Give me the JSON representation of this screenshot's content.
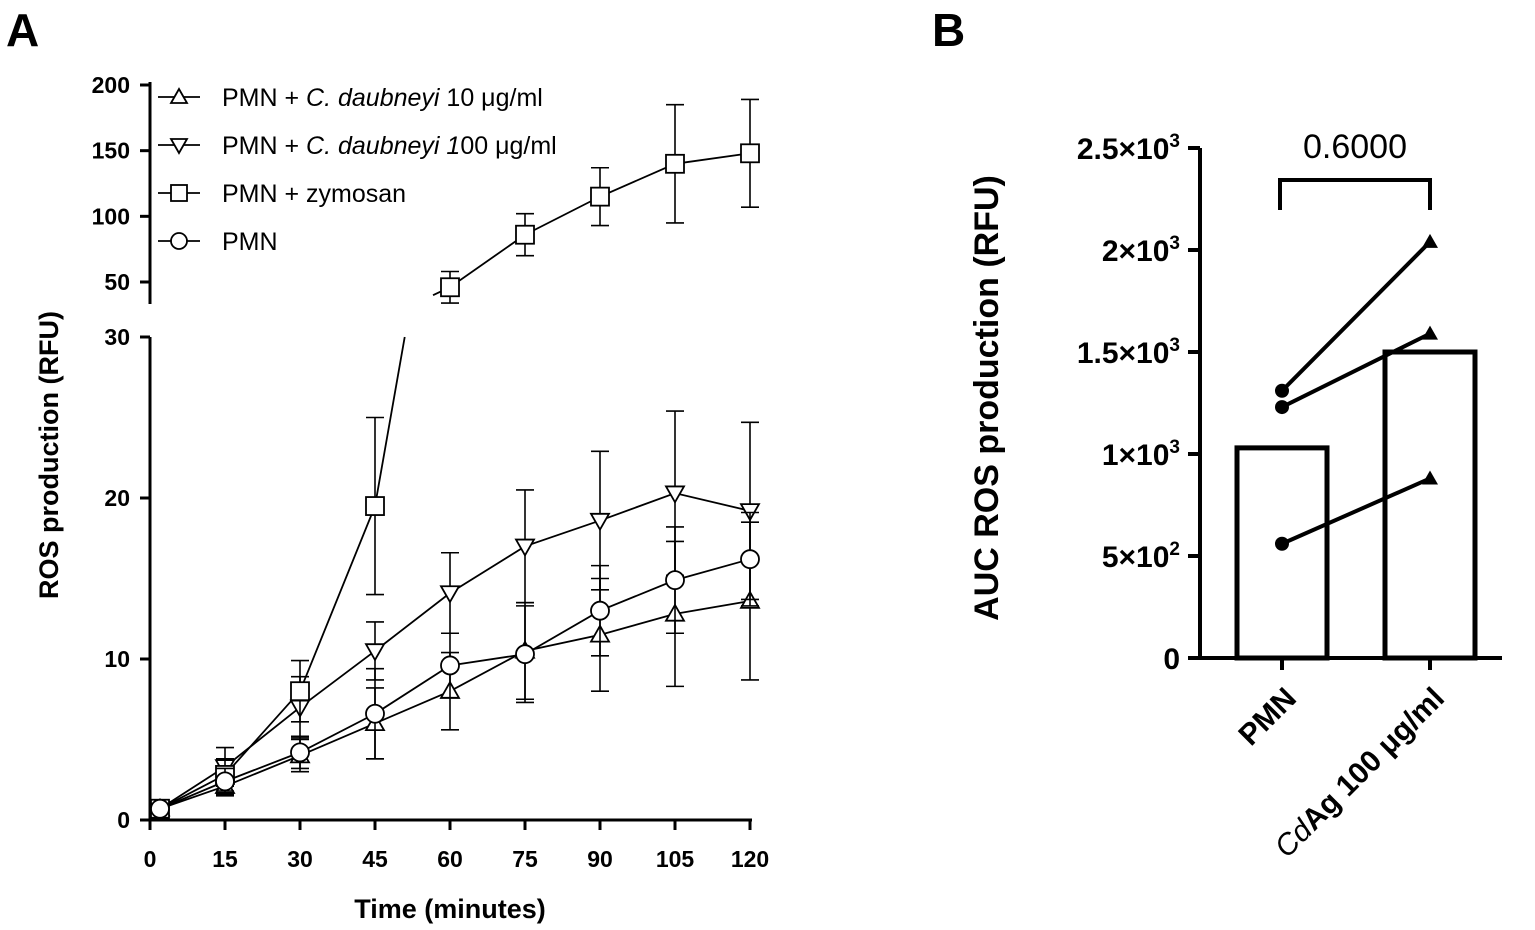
{
  "panel_a_letter": "A",
  "panel_b_letter": "B",
  "chart_data": [
    {
      "type": "line",
      "panel": "A",
      "xlabel": "Time (minutes)",
      "ylabel": "ROS production (RFU)",
      "x": [
        2,
        15,
        30,
        45,
        60,
        75,
        90,
        105,
        120
      ],
      "x_ticks": [
        "0",
        "15",
        "30",
        "45",
        "60",
        "75",
        "90",
        "105",
        "120"
      ],
      "xlim": [
        0,
        120
      ],
      "y_axis_break": {
        "lower_range": [
          0,
          30
        ],
        "upper_range": [
          40,
          200
        ]
      },
      "y_ticks_lower": [
        "0",
        "10",
        "20",
        "30"
      ],
      "y_ticks_upper": [
        "50",
        "100",
        "150",
        "200"
      ],
      "legend_position": "top-left",
      "series": [
        {
          "name_prefix": "PMN + ",
          "name_italic": "C. daubneyi",
          "name_suffix": " 10 μg/ml",
          "marker": "triangle-up",
          "values": [
            0.7,
            2.1,
            4.0,
            6.0,
            8.0,
            10.5,
            11.5,
            12.8,
            13.6
          ],
          "errors": [
            0.3,
            0.6,
            1.0,
            2.2,
            2.4,
            3.0,
            3.5,
            4.5,
            4.9
          ]
        },
        {
          "name_prefix": "PMN + ",
          "name_italic": "C. daubneyi 1",
          "name_suffix": "00 μg/ml",
          "marker": "triangle-down",
          "values": [
            0.7,
            3.3,
            7.0,
            10.5,
            14.1,
            17.0,
            18.6,
            20.3,
            19.2
          ],
          "errors": [
            0.3,
            1.2,
            1.9,
            1.8,
            2.5,
            3.5,
            4.3,
            5.1,
            5.5
          ]
        },
        {
          "name_prefix": "PMN + zymosan",
          "name_italic": "",
          "name_suffix": "",
          "marker": "square",
          "values": [
            0.7,
            2.8,
            8.0,
            19.5,
            46,
            86,
            115,
            140,
            148
          ],
          "errors": [
            0.3,
            1.0,
            1.9,
            5.5,
            12,
            16,
            22,
            45,
            41
          ]
        },
        {
          "name_prefix": "PMN",
          "name_italic": "",
          "name_suffix": "",
          "marker": "circle",
          "values": [
            0.7,
            2.4,
            4.2,
            6.6,
            9.6,
            10.3,
            13.0,
            14.9,
            16.2
          ],
          "errors": [
            0.3,
            0.8,
            1.0,
            2.8,
            2.0,
            3.0,
            2.8,
            3.3,
            2.9
          ]
        }
      ]
    },
    {
      "type": "bar",
      "panel": "B",
      "ylabel": "AUC ROS production (RFU)",
      "categories": [
        "PMN",
        "100 μg/ml"
      ],
      "category_italic_prefix": "Cd",
      "category_bold_mid": "Ag ",
      "values": [
        1030,
        1500
      ],
      "ylim": [
        0,
        2500
      ],
      "y_ticks": [
        {
          "value": 0,
          "mantissa": "0",
          "exp": ""
        },
        {
          "value": 500,
          "mantissa": "5×10",
          "exp": "2"
        },
        {
          "value": 1000,
          "mantissa": "1×10",
          "exp": "3"
        },
        {
          "value": 1500,
          "mantissa": "1.5×10",
          "exp": "3"
        },
        {
          "value": 2000,
          "mantissa": "2×10",
          "exp": "3"
        },
        {
          "value": 2500,
          "mantissa": "2.5×10",
          "exp": "3"
        }
      ],
      "paired_points": [
        {
          "pmn": 1310,
          "treated": 2040
        },
        {
          "pmn": 1230,
          "treated": 1590
        },
        {
          "pmn": 560,
          "treated": 880
        }
      ],
      "significance_label": "0.6000"
    }
  ]
}
